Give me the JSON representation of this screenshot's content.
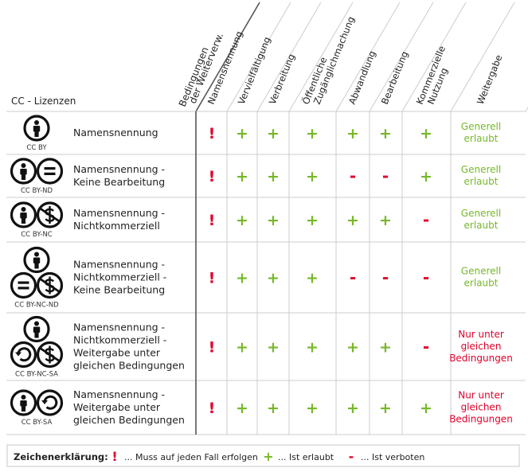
{
  "header": {
    "title": "CC - Lizenzen",
    "conditions_label_line1": "Bedingungen",
    "conditions_label_line2": "der Weiterverw."
  },
  "columns": [
    {
      "lines": [
        "Namensnennung"
      ]
    },
    {
      "lines": [
        "Vervielfältigung"
      ]
    },
    {
      "lines": [
        "Verbreitung"
      ]
    },
    {
      "lines": [
        "Öffentliche",
        "Zugänglichmachung"
      ]
    },
    {
      "lines": [
        "Abwandlung"
      ]
    },
    {
      "lines": [
        "Bearbeitung"
      ]
    },
    {
      "lines": [
        "Kommerzielle",
        "Nutzung"
      ]
    },
    {
      "lines": [
        "Weitergabe"
      ]
    }
  ],
  "licenses": [
    {
      "code": "CC BY",
      "icons": [
        [
          "by"
        ]
      ],
      "name_lines": [
        "Namensnennung"
      ],
      "marks": [
        "!",
        "+",
        "+",
        "+",
        "+",
        "+",
        "+"
      ],
      "weitergabe_lines": [
        "Generell",
        "erlaubt"
      ],
      "weitergabe_status": "allowed"
    },
    {
      "code": "CC BY-ND",
      "icons": [
        [
          "by",
          "nd"
        ]
      ],
      "name_lines": [
        "Namensnennung -",
        "Keine Bearbeitung"
      ],
      "marks": [
        "!",
        "+",
        "+",
        "+",
        "-",
        "-",
        "+"
      ],
      "weitergabe_lines": [
        "Generell",
        "erlaubt"
      ],
      "weitergabe_status": "allowed"
    },
    {
      "code": "CC BY-NC",
      "icons": [
        [
          "by",
          "nc"
        ]
      ],
      "name_lines": [
        "Namensnennung -",
        "Nichtkommerziell"
      ],
      "marks": [
        "!",
        "+",
        "+",
        "+",
        "+",
        "+",
        "-"
      ],
      "weitergabe_lines": [
        "Generell",
        "erlaubt"
      ],
      "weitergabe_status": "allowed"
    },
    {
      "code": "CC BY-NC-ND",
      "icons": [
        [
          "by"
        ],
        [
          "nd",
          "nc"
        ]
      ],
      "name_lines": [
        "Namensnennung -",
        "Nichtkommerziell -",
        "Keine Bearbeitung"
      ],
      "marks": [
        "!",
        "+",
        "+",
        "+",
        "-",
        "-",
        "-"
      ],
      "weitergabe_lines": [
        "Generell",
        "erlaubt"
      ],
      "weitergabe_status": "allowed"
    },
    {
      "code": "CC BY-NC-SA",
      "icons": [
        [
          "by"
        ],
        [
          "sa",
          "nc"
        ]
      ],
      "name_lines": [
        "Namensnennung -",
        "Nichtkommerziell -",
        "Weitergabe unter",
        "gleichen Bedingungen"
      ],
      "marks": [
        "!",
        "+",
        "+",
        "+",
        "+",
        "+",
        "-"
      ],
      "weitergabe_lines": [
        "Nur unter",
        "gleichen",
        "Bedingungen"
      ],
      "weitergabe_status": "restricted"
    },
    {
      "code": "CC BY-SA",
      "icons": [
        [
          "by",
          "sa"
        ]
      ],
      "name_lines": [
        "Namensnennung -",
        "Weitergabe unter",
        "gleichen Bedingungen"
      ],
      "marks": [
        "!",
        "+",
        "+",
        "+",
        "+",
        "+",
        "+"
      ],
      "weitergabe_lines": [
        "Nur unter",
        "gleichen",
        "Bedingungen"
      ],
      "weitergabe_status": "restricted"
    }
  ],
  "legend": {
    "label": "Zeichenerklärung:",
    "items": [
      {
        "symbol": "!",
        "text": "... Muss auf jeden Fall erfolgen"
      },
      {
        "symbol": "+",
        "text": "... Ist erlaubt"
      },
      {
        "symbol": "-",
        "text": "... Ist verboten"
      }
    ]
  },
  "colors": {
    "must": "#e0002a",
    "allowed": "#76b82a",
    "forbidden": "#e0002a",
    "text": "#222222",
    "grid": "#cccccc",
    "divider": "#555555",
    "icon": "#111111"
  }
}
